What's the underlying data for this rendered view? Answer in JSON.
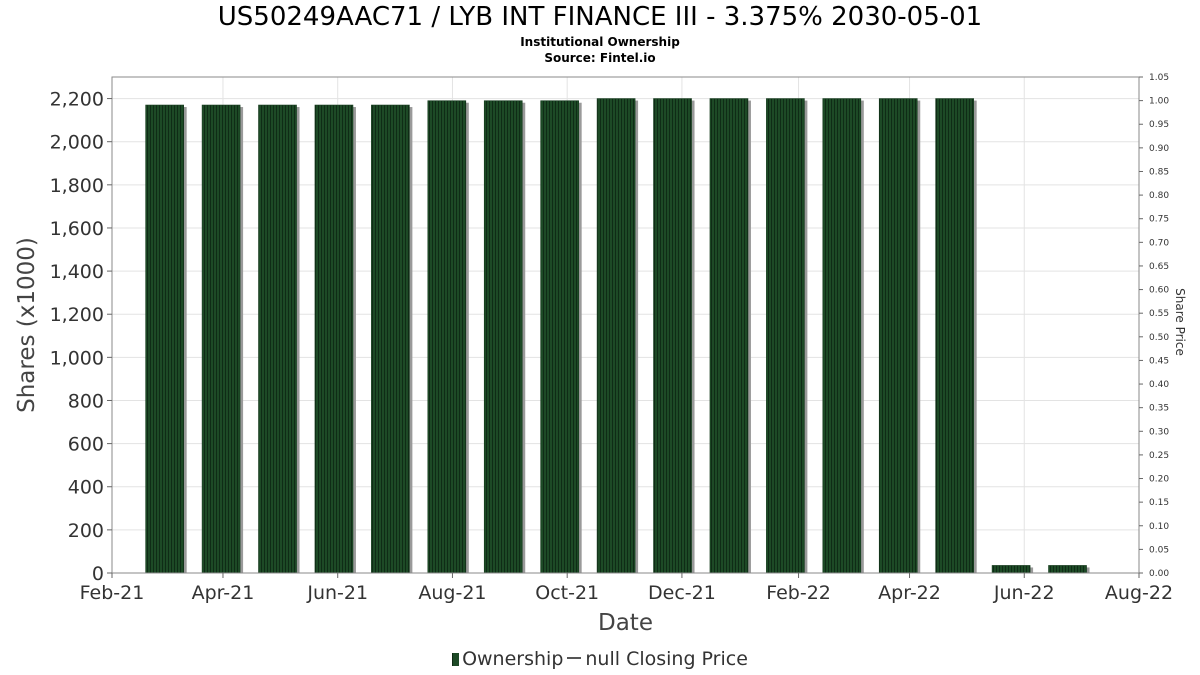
{
  "chart_data": {
    "type": "bar",
    "title": "US50249AAC71 / LYB INT FINANCE III - 3.375% 2030-05-01",
    "subtitle_lines": [
      "Institutional Ownership",
      "Source: Fintel.io"
    ],
    "xlabel": "Date",
    "ylabel": "Shares (x1000)",
    "y2label": "Share Price",
    "xlim": [
      "2021-02-01",
      "2022-08-01"
    ],
    "ylim": [
      0,
      2300
    ],
    "y2lim": [
      0,
      1.05
    ],
    "x_ticks": [
      {
        "date": "2021-02-01",
        "label": "Feb-21"
      },
      {
        "date": "2021-04-01",
        "label": "Apr-21"
      },
      {
        "date": "2021-06-01",
        "label": "Jun-21"
      },
      {
        "date": "2021-08-01",
        "label": "Aug-21"
      },
      {
        "date": "2021-10-01",
        "label": "Oct-21"
      },
      {
        "date": "2021-12-01",
        "label": "Dec-21"
      },
      {
        "date": "2022-02-01",
        "label": "Feb-22"
      },
      {
        "date": "2022-04-01",
        "label": "Apr-22"
      },
      {
        "date": "2022-06-01",
        "label": "Jun-22"
      },
      {
        "date": "2022-08-01",
        "label": "Aug-22"
      }
    ],
    "y_ticks": [
      {
        "value": 0,
        "label": "0"
      },
      {
        "value": 200,
        "label": "200"
      },
      {
        "value": 400,
        "label": "400"
      },
      {
        "value": 600,
        "label": "600"
      },
      {
        "value": 800,
        "label": "800"
      },
      {
        "value": 1000,
        "label": "1,000"
      },
      {
        "value": 1200,
        "label": "1,200"
      },
      {
        "value": 1400,
        "label": "1,400"
      },
      {
        "value": 1600,
        "label": "1,600"
      },
      {
        "value": 1800,
        "label": "1,800"
      },
      {
        "value": 2000,
        "label": "2,000"
      },
      {
        "value": 2200,
        "label": "2,200"
      }
    ],
    "y2_ticks": [
      "0.00",
      "0.05",
      "0.10",
      "0.15",
      "0.20",
      "0.25",
      "0.30",
      "0.35",
      "0.40",
      "0.45",
      "0.50",
      "0.55",
      "0.60",
      "0.65",
      "0.70",
      "0.75",
      "0.80",
      "0.85",
      "0.90",
      "0.95",
      "1.00",
      "1.05"
    ],
    "series": [
      {
        "name": "Ownership",
        "color": "#1d4a26",
        "x": [
          "2021-03-01",
          "2021-03-31",
          "2021-04-30",
          "2021-05-30",
          "2021-06-29",
          "2021-07-29",
          "2021-08-28",
          "2021-09-27",
          "2021-10-27",
          "2021-11-26",
          "2021-12-26",
          "2022-01-25",
          "2022-02-24",
          "2022-03-26",
          "2022-04-25",
          "2022-05-25",
          "2022-06-24"
        ],
        "values": [
          2170,
          2170,
          2170,
          2170,
          2170,
          2190,
          2190,
          2190,
          2200,
          2200,
          2200,
          2200,
          2200,
          2200,
          2200,
          35,
          35
        ]
      }
    ],
    "grid": true,
    "legend_position": "bottom-center"
  },
  "legend": {
    "ownership_label": "Ownership",
    "price_label": "null Closing Price"
  }
}
